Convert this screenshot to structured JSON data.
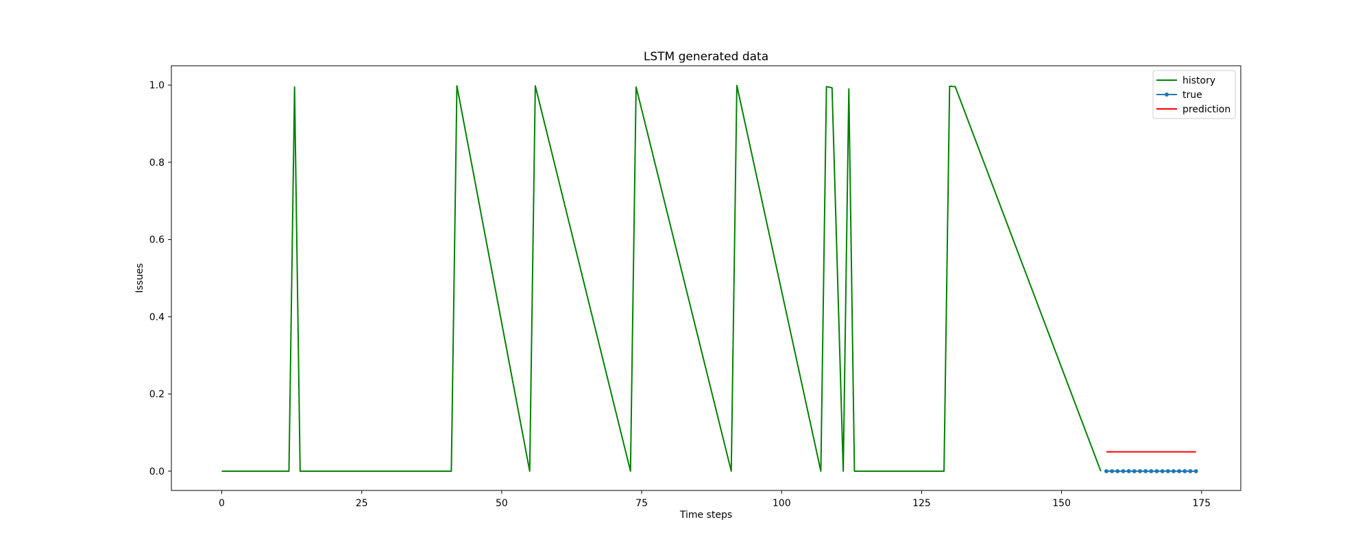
{
  "chart_data": {
    "type": "line",
    "title": "LSTM generated data",
    "xlabel": "Time steps",
    "ylabel": "Issues",
    "xlim": [
      -9,
      182
    ],
    "ylim": [
      -0.05,
      1.05
    ],
    "xticks": [
      0,
      25,
      50,
      75,
      100,
      125,
      150,
      175
    ],
    "yticks": [
      0.0,
      0.2,
      0.4,
      0.6,
      0.8,
      1.0
    ],
    "xtick_labels": [
      "0",
      "25",
      "50",
      "75",
      "100",
      "125",
      "150",
      "175"
    ],
    "ytick_labels": [
      "0.0",
      "0.2",
      "0.4",
      "0.6",
      "0.8",
      "1.0"
    ],
    "grid": false,
    "legend_position": "top-right",
    "series": [
      {
        "name": "history",
        "color": "#008000",
        "marker": "none",
        "x": [
          0,
          12,
          13,
          14,
          41,
          42,
          55,
          56,
          73,
          74,
          91,
          92,
          107,
          108,
          109,
          111,
          112,
          113,
          129,
          130,
          131,
          157
        ],
        "y": [
          0,
          0,
          0.995,
          0,
          0,
          0.998,
          0,
          0.998,
          0,
          0.995,
          0,
          0.999,
          0,
          0.996,
          0.993,
          0,
          0.99,
          0,
          0,
          0.997,
          0.996,
          0
        ]
      },
      {
        "name": "true",
        "color": "#1f77b4",
        "marker": "dot",
        "x": [
          158,
          159,
          160,
          161,
          162,
          163,
          164,
          165,
          166,
          167,
          168,
          169,
          170,
          171,
          172,
          173,
          174
        ],
        "y": [
          0,
          0,
          0,
          0,
          0,
          0,
          0,
          0,
          0,
          0,
          0,
          0,
          0,
          0,
          0,
          0,
          0
        ]
      },
      {
        "name": "prediction",
        "color": "#ff0000",
        "marker": "none",
        "x": [
          158,
          174
        ],
        "y": [
          0.05,
          0.05
        ]
      }
    ]
  }
}
